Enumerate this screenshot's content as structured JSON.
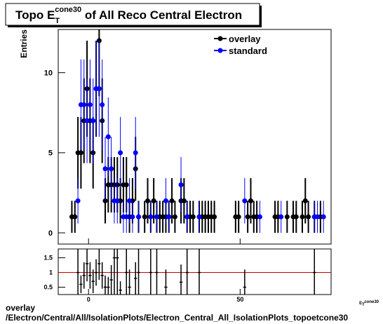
{
  "chart_data": [
    {
      "type": "errorbar",
      "title": {
        "prefix": "Topo E",
        "sub": "T",
        "sup": "cone30",
        "suffix": " of All Reco Central  Electron"
      },
      "ylabel": "Entries",
      "xlim": [
        -10,
        80
      ],
      "ylim": [
        -0.7,
        12.7
      ],
      "xticks": [
        0,
        50
      ],
      "yticks": [
        0,
        5,
        10
      ],
      "legend": "top-right",
      "series": [
        {
          "name": "overlay",
          "color": "#000000",
          "x": [
            -5.5,
            -4.5,
            -3.5,
            -2.5,
            -1.5,
            -0.5,
            0.5,
            1.5,
            2.5,
            3.5,
            4.5,
            5.5,
            6.5,
            7.5,
            8.5,
            9.5,
            10.5,
            11.5,
            12.5,
            13.5,
            14.5,
            15.5,
            16.5,
            18.5,
            19.5,
            20.5,
            21.5,
            22.5,
            23.5,
            24.5,
            25.5,
            26.5,
            27.5,
            28.5,
            30.5,
            31.5,
            32.5,
            33.5,
            34.5,
            36.5,
            37.5,
            38.5,
            39.5,
            40.5,
            41.5,
            48.5,
            49.5,
            52.5,
            53.5,
            54.5,
            55.5,
            61.5,
            62.5,
            65.5,
            67.5,
            68.5,
            70.5,
            71.5,
            72.5,
            74.5,
            76.5
          ],
          "values": [
            1,
            1,
            5,
            5,
            7,
            9,
            7,
            5,
            9,
            12,
            7,
            2,
            3,
            3,
            3,
            3,
            2,
            3,
            3,
            1,
            2,
            4,
            1,
            1,
            2,
            1,
            2,
            1,
            1,
            1,
            1,
            1,
            2,
            1,
            2,
            2,
            1,
            1,
            1,
            1,
            1,
            1,
            1,
            1,
            1,
            1,
            1,
            1,
            2,
            1,
            1,
            1,
            1,
            1,
            1,
            1,
            1,
            2,
            1,
            1,
            1
          ]
        },
        {
          "name": "standard",
          "color": "#0000ff",
          "x": [
            -3.5,
            -2.5,
            -1.5,
            -0.5,
            0.5,
            1.5,
            2.5,
            3.5,
            4.5,
            5.5,
            6.5,
            7.5,
            8.5,
            9.5,
            10.5,
            11.5,
            12.5,
            13.5,
            14.5,
            15.5,
            16.5,
            20.5,
            22.5,
            25.5,
            26.5,
            30.5,
            32.5,
            36.5,
            51.5,
            56.5,
            63.5,
            74.5,
            75.5,
            77.5
          ],
          "values": [
            2,
            8,
            8,
            7,
            8,
            7,
            9,
            9,
            8,
            4,
            6,
            4,
            2,
            2,
            5,
            1,
            1,
            2,
            1,
            5,
            1,
            1,
            1,
            2,
            1,
            3,
            1,
            1,
            2,
            1,
            1,
            1,
            1,
            1
          ]
        }
      ]
    },
    {
      "type": "ratio",
      "xlabel": {
        "prefix": "E",
        "sub": "T",
        "sup": "cone30"
      },
      "xlim": [
        -10,
        80
      ],
      "ylim": [
        0.25,
        1.8
      ],
      "xticks": [
        0,
        50
      ],
      "yticks": [
        0.5,
        1,
        1.5
      ],
      "reference_line": 1,
      "reference_color": "#cc0000",
      "x": [
        -3.5,
        -2.5,
        -1.5,
        -0.5,
        0.5,
        1.5,
        2.5,
        3.5,
        4.5,
        5.5,
        6.5,
        7.5,
        8.5,
        9.5,
        10.5,
        12.5,
        13.5,
        15.5,
        16.5,
        20.5,
        22.5,
        25.5,
        30.5,
        32.5,
        36.5,
        51.5,
        74.5
      ],
      "values": [
        1.0,
        0.6,
        0.9,
        1.3,
        0.9,
        0.7,
        1.0,
        1.3,
        0.9,
        0.5,
        0.5,
        0.75,
        1.5,
        1.5,
        0.4,
        1.0,
        0.5,
        0.8,
        1.0,
        1.0,
        1.0,
        0.5,
        0.67,
        1.0,
        1.0,
        0.5,
        1.0
      ],
      "errors": [
        0.9,
        0.3,
        0.45,
        0.6,
        0.45,
        0.4,
        0.45,
        0.55,
        0.45,
        0.4,
        0.35,
        0.5,
        1.3,
        1.3,
        0.3,
        1.4,
        0.6,
        0.55,
        1.4,
        1.4,
        1.4,
        0.6,
        0.6,
        1.4,
        1.4,
        0.6,
        1.4
      ]
    }
  ],
  "footer": {
    "line1": "overlay",
    "line2": "/Electron/Central/All/IsolationPlots/Electron_Central_All_IsolationPlots_topoetcone30"
  }
}
